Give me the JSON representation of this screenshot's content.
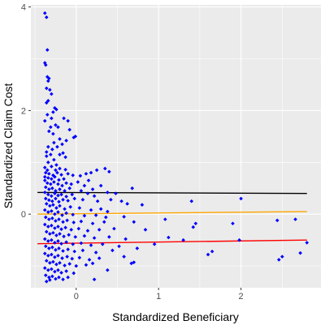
{
  "chart_data": {
    "type": "scatter",
    "title": "",
    "xlabel": "Standardized Beneficiary",
    "ylabel": "Standardized Claim Cost",
    "xlim": [
      -0.55,
      2.97
    ],
    "ylim": [
      -1.42,
      4.04
    ],
    "x_ticks": [
      0,
      1,
      2
    ],
    "x_tick_labels": [
      "0",
      "1",
      "2"
    ],
    "y_ticks": [
      0,
      2,
      4
    ],
    "y_tick_labels": [
      "0",
      "2",
      "4"
    ],
    "grid": true,
    "panel_background": "#ebebeb",
    "grid_color": "#ffffff",
    "point_color": "#0000ff",
    "point_shape": "diamond",
    "points": [
      [
        -0.38,
        3.88
      ],
      [
        -0.36,
        3.8
      ],
      [
        -0.35,
        3.17
      ],
      [
        -0.38,
        2.92
      ],
      [
        -0.37,
        2.88
      ],
      [
        -0.35,
        2.65
      ],
      [
        -0.33,
        2.62
      ],
      [
        -0.34,
        2.57
      ],
      [
        -0.36,
        2.43
      ],
      [
        -0.32,
        2.4
      ],
      [
        -0.3,
        2.32
      ],
      [
        -0.34,
        2.19
      ],
      [
        -0.36,
        2.15
      ],
      [
        -0.26,
        2.05
      ],
      [
        -0.24,
        2.02
      ],
      [
        -0.28,
        1.97
      ],
      [
        -0.35,
        1.92
      ],
      [
        -0.3,
        1.85
      ],
      [
        -0.38,
        1.8
      ],
      [
        -0.25,
        1.72
      ],
      [
        -0.31,
        1.68
      ],
      [
        -0.33,
        1.6
      ],
      [
        -0.28,
        1.55
      ],
      [
        -0.22,
        1.68
      ],
      [
        -0.15,
        1.85
      ],
      [
        -0.1,
        1.8
      ],
      [
        -0.08,
        1.63
      ],
      [
        -0.03,
        1.48
      ],
      [
        -0.01,
        1.5
      ],
      [
        -0.12,
        1.42
      ],
      [
        -0.2,
        1.45
      ],
      [
        -0.27,
        1.38
      ],
      [
        -0.34,
        1.3
      ],
      [
        -0.29,
        1.25
      ],
      [
        -0.23,
        1.3
      ],
      [
        -0.17,
        1.35
      ],
      [
        -0.36,
        1.2
      ],
      [
        -0.31,
        1.15
      ],
      [
        -0.36,
        1.12
      ],
      [
        -0.2,
        1.15
      ],
      [
        -0.16,
        1.18
      ],
      [
        -0.13,
        1.1
      ],
      [
        -0.27,
        1.05
      ],
      [
        -0.34,
        1.0
      ],
      [
        -0.24,
        0.95
      ],
      [
        -0.3,
        0.92
      ],
      [
        -0.38,
        0.9
      ],
      [
        -0.35,
        0.85
      ],
      [
        -0.25,
        0.85
      ],
      [
        -0.2,
        0.88
      ],
      [
        -0.13,
        0.86
      ],
      [
        -0.37,
        0.8
      ],
      [
        -0.33,
        0.78
      ],
      [
        -0.28,
        0.75
      ],
      [
        -0.23,
        0.8
      ],
      [
        -0.18,
        0.76
      ],
      [
        -0.1,
        0.78
      ],
      [
        -0.04,
        0.75
      ],
      [
        -0.38,
        0.72
      ],
      [
        -0.34,
        0.7
      ],
      [
        -0.3,
        0.68
      ],
      [
        -0.26,
        0.72
      ],
      [
        -0.21,
        0.66
      ],
      [
        -0.15,
        0.68
      ],
      [
        0.05,
        0.74
      ],
      [
        0.12,
        0.78
      ],
      [
        0.18,
        0.8
      ],
      [
        0.25,
        0.85
      ],
      [
        0.35,
        0.88
      ],
      [
        0.4,
        0.82
      ],
      [
        -0.38,
        0.65
      ],
      [
        -0.35,
        0.6
      ],
      [
        -0.31,
        0.58
      ],
      [
        -0.27,
        0.62
      ],
      [
        -0.22,
        0.58
      ],
      [
        -0.17,
        0.55
      ],
      [
        -0.12,
        0.6
      ],
      [
        -0.06,
        0.58
      ],
      [
        0.02,
        0.62
      ],
      [
        0.1,
        0.55
      ],
      [
        0.15,
        0.65
      ],
      [
        -0.37,
        0.52
      ],
      [
        -0.33,
        0.48
      ],
      [
        -0.29,
        0.5
      ],
      [
        -0.25,
        0.45
      ],
      [
        -0.2,
        0.48
      ],
      [
        -0.14,
        0.45
      ],
      [
        -0.08,
        0.5
      ],
      [
        0.06,
        0.45
      ],
      [
        0.2,
        0.48
      ],
      [
        0.3,
        0.55
      ],
      [
        0.38,
        0.42
      ],
      [
        -0.38,
        0.42
      ],
      [
        -0.34,
        0.38
      ],
      [
        -0.3,
        0.35
      ],
      [
        -0.26,
        0.4
      ],
      [
        -0.22,
        0.36
      ],
      [
        -0.18,
        0.38
      ],
      [
        -0.12,
        0.34
      ],
      [
        -0.05,
        0.38
      ],
      [
        0.14,
        0.4
      ],
      [
        0.22,
        0.35
      ],
      [
        0.48,
        0.4
      ],
      [
        0.68,
        0.5
      ],
      [
        -0.37,
        0.3
      ],
      [
        -0.33,
        0.27
      ],
      [
        -0.29,
        0.25
      ],
      [
        -0.25,
        0.3
      ],
      [
        -0.21,
        0.24
      ],
      [
        -0.16,
        0.28
      ],
      [
        -0.1,
        0.26
      ],
      [
        -0.02,
        0.3
      ],
      [
        0.08,
        0.28
      ],
      [
        0.26,
        0.25
      ],
      [
        0.42,
        0.28
      ],
      [
        0.55,
        0.25
      ],
      [
        0.62,
        0.2
      ],
      [
        1.4,
        0.25
      ],
      [
        2.0,
        0.3
      ],
      [
        -0.36,
        0.2
      ],
      [
        -0.32,
        0.16
      ],
      [
        -0.28,
        0.18
      ],
      [
        -0.24,
        0.12
      ],
      [
        -0.2,
        0.16
      ],
      [
        -0.14,
        0.1
      ],
      [
        -0.07,
        0.14
      ],
      [
        0.04,
        0.12
      ],
      [
        0.18,
        0.08
      ],
      [
        0.3,
        0.1
      ],
      [
        0.38,
        0.05
      ],
      [
        0.8,
        0.18
      ],
      [
        -0.38,
        0.08
      ],
      [
        -0.34,
        0.04
      ],
      [
        -0.3,
        0.06
      ],
      [
        -0.26,
        0.0
      ],
      [
        -0.22,
        0.04
      ],
      [
        -0.17,
        -0.02
      ],
      [
        -0.12,
        0.02
      ],
      [
        -0.04,
        -0.01
      ],
      [
        0.1,
        -0.03
      ],
      [
        0.24,
        -0.02
      ],
      [
        0.36,
        -0.06
      ],
      [
        0.58,
        -0.05
      ],
      [
        1.08,
        -0.1
      ],
      [
        1.9,
        -0.18
      ],
      [
        2.44,
        -0.12
      ],
      [
        2.66,
        -0.1
      ],
      [
        -0.37,
        -0.06
      ],
      [
        -0.33,
        -0.1
      ],
      [
        -0.29,
        -0.08
      ],
      [
        -0.25,
        -0.13
      ],
      [
        -0.21,
        -0.1
      ],
      [
        -0.16,
        -0.15
      ],
      [
        -0.11,
        -0.12
      ],
      [
        -0.03,
        -0.16
      ],
      [
        0.06,
        -0.14
      ],
      [
        0.2,
        -0.18
      ],
      [
        0.34,
        -0.15
      ],
      [
        0.7,
        -0.15
      ],
      [
        1.45,
        -0.18
      ],
      [
        1.42,
        -0.25
      ],
      [
        -0.38,
        -0.2
      ],
      [
        -0.34,
        -0.24
      ],
      [
        -0.3,
        -0.22
      ],
      [
        -0.26,
        -0.27
      ],
      [
        -0.22,
        -0.24
      ],
      [
        -0.18,
        -0.29
      ],
      [
        -0.13,
        -0.26
      ],
      [
        -0.06,
        -0.3
      ],
      [
        0.03,
        -0.28
      ],
      [
        0.14,
        -0.32
      ],
      [
        0.28,
        -0.3
      ],
      [
        0.46,
        -0.28
      ],
      [
        0.84,
        -0.3
      ],
      [
        -0.36,
        -0.34
      ],
      [
        -0.32,
        -0.38
      ],
      [
        -0.28,
        -0.36
      ],
      [
        -0.24,
        -0.41
      ],
      [
        -0.2,
        -0.38
      ],
      [
        -0.15,
        -0.43
      ],
      [
        -0.09,
        -0.4
      ],
      [
        -0.01,
        -0.44
      ],
      [
        0.1,
        -0.42
      ],
      [
        0.22,
        -0.46
      ],
      [
        0.4,
        -0.44
      ],
      [
        0.6,
        -0.48
      ],
      [
        1.12,
        -0.45
      ],
      [
        1.98,
        -0.5
      ],
      [
        -0.38,
        -0.48
      ],
      [
        -0.34,
        -0.52
      ],
      [
        -0.3,
        -0.5
      ],
      [
        -0.26,
        -0.55
      ],
      [
        -0.22,
        -0.52
      ],
      [
        -0.18,
        -0.57
      ],
      [
        -0.12,
        -0.54
      ],
      [
        -0.04,
        -0.58
      ],
      [
        0.06,
        -0.56
      ],
      [
        0.18,
        -0.6
      ],
      [
        0.32,
        -0.58
      ],
      [
        0.52,
        -0.62
      ],
      [
        0.95,
        -0.58
      ],
      [
        1.3,
        -0.5
      ],
      [
        -0.37,
        -0.62
      ],
      [
        -0.33,
        -0.66
      ],
      [
        -0.29,
        -0.64
      ],
      [
        -0.25,
        -0.69
      ],
      [
        -0.21,
        -0.66
      ],
      [
        -0.16,
        -0.71
      ],
      [
        -0.1,
        -0.68
      ],
      [
        -0.02,
        -0.72
      ],
      [
        0.08,
        -0.7
      ],
      [
        0.24,
        -0.74
      ],
      [
        0.44,
        -0.7
      ],
      [
        0.74,
        -0.66
      ],
      [
        2.8,
        -0.55
      ],
      [
        -0.38,
        -0.76
      ],
      [
        -0.34,
        -0.8
      ],
      [
        -0.3,
        -0.78
      ],
      [
        -0.26,
        -0.83
      ],
      [
        -0.22,
        -0.8
      ],
      [
        -0.17,
        -0.85
      ],
      [
        -0.11,
        -0.82
      ],
      [
        -0.05,
        -0.86
      ],
      [
        0.04,
        -0.84
      ],
      [
        0.16,
        -0.88
      ],
      [
        0.28,
        -0.85
      ],
      [
        0.58,
        -0.82
      ],
      [
        1.65,
        -0.72
      ],
      [
        1.6,
        -0.78
      ],
      [
        2.72,
        -0.75
      ],
      [
        -0.36,
        -0.9
      ],
      [
        -0.32,
        -0.94
      ],
      [
        -0.28,
        -0.92
      ],
      [
        -0.24,
        -0.97
      ],
      [
        -0.2,
        -0.94
      ],
      [
        -0.14,
        -0.99
      ],
      [
        -0.08,
        -0.96
      ],
      [
        0.0,
        -1.0
      ],
      [
        0.12,
        -0.98
      ],
      [
        0.2,
        -0.95
      ],
      [
        0.7,
        -0.93
      ],
      [
        0.67,
        -0.95
      ],
      [
        2.5,
        -0.82
      ],
      [
        2.46,
        -0.88
      ],
      [
        -0.38,
        -1.04
      ],
      [
        -0.34,
        -1.08
      ],
      [
        -0.3,
        -1.06
      ],
      [
        -0.26,
        -1.11
      ],
      [
        -0.22,
        -1.08
      ],
      [
        -0.18,
        -1.13
      ],
      [
        -0.12,
        -1.1
      ],
      [
        -0.03,
        -1.14
      ],
      [
        0.38,
        -1.08
      ],
      [
        -0.37,
        -1.18
      ],
      [
        -0.33,
        -1.22
      ],
      [
        -0.29,
        -1.2
      ],
      [
        -0.25,
        -1.25
      ],
      [
        -0.21,
        -1.22
      ],
      [
        -0.16,
        -1.26
      ],
      [
        -0.1,
        -1.22
      ],
      [
        -0.36,
        -1.3
      ],
      [
        -0.32,
        -1.27
      ],
      [
        0.22,
        -1.26
      ]
    ],
    "reference_lines": [
      {
        "color": "#000000",
        "x": [
          -0.47,
          2.8
        ],
        "y": [
          0.42,
          0.4
        ]
      },
      {
        "color": "#ffa500",
        "x": [
          -0.47,
          2.8
        ],
        "y": [
          0.0,
          0.05
        ]
      },
      {
        "color": "#ff0000",
        "x": [
          -0.47,
          2.8
        ],
        "y": [
          -0.57,
          -0.5
        ]
      }
    ]
  }
}
